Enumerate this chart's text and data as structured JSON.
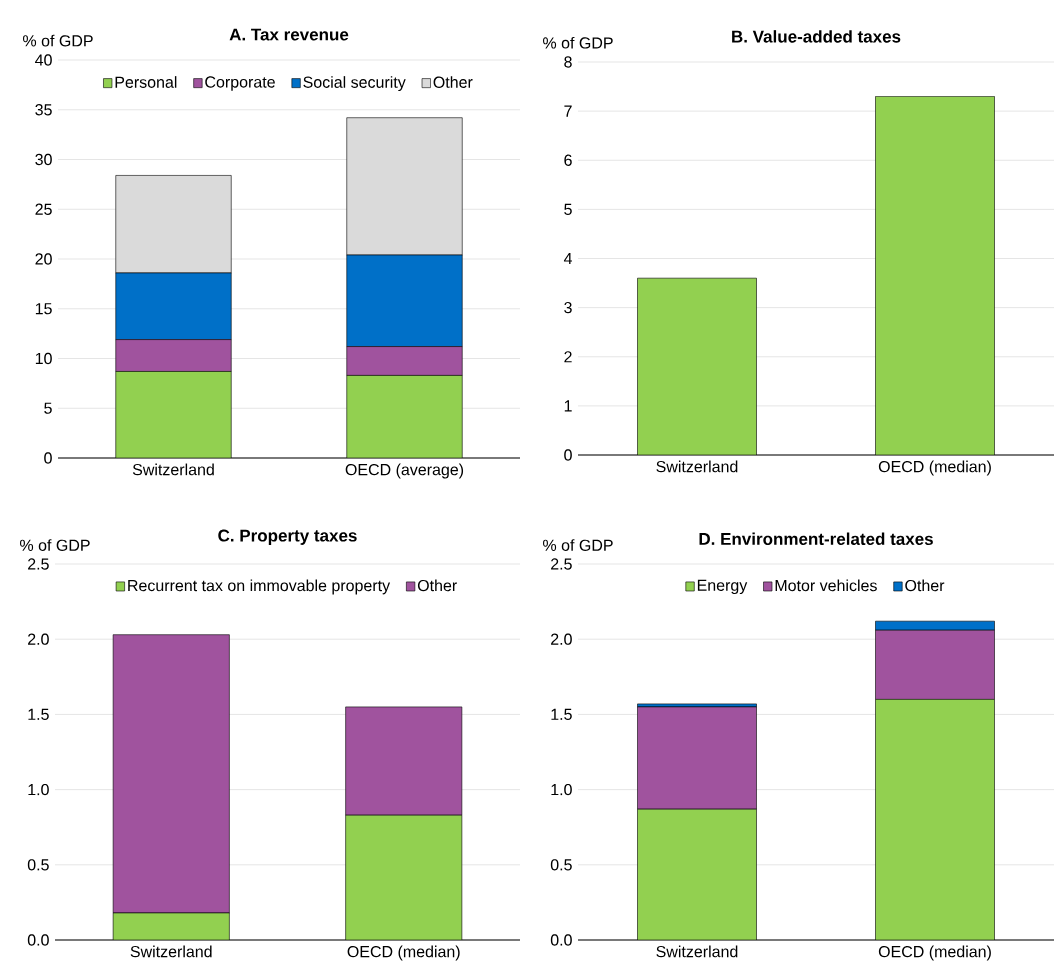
{
  "chart_data": [
    {
      "type": "bar",
      "title": "A. Tax revenue",
      "ylabel": "% of GDP",
      "categories": [
        "Switzerland",
        "OECD (average)"
      ],
      "stacked": true,
      "legend": "top",
      "grid": "y",
      "ylim": [
        0,
        40
      ],
      "yticks": [
        0,
        5,
        10,
        15,
        20,
        25,
        30,
        35,
        40
      ],
      "series": [
        {
          "name": "Personal",
          "color": "#92d050",
          "values": [
            8.7,
            8.3
          ]
        },
        {
          "name": "Corporate",
          "color": "#a0539e",
          "values": [
            3.2,
            2.9
          ]
        },
        {
          "name": "Social security",
          "color": "#0070c8",
          "values": [
            6.7,
            9.2
          ]
        },
        {
          "name": "Other",
          "color": "#dadada",
          "values": [
            9.8,
            13.8
          ]
        }
      ]
    },
    {
      "type": "bar",
      "title": "B. Value-added taxes",
      "ylabel": "% of GDP",
      "categories": [
        "Switzerland",
        "OECD (median)"
      ],
      "grid": "y",
      "ylim": [
        0,
        8
      ],
      "yticks": [
        0,
        1,
        2,
        3,
        4,
        5,
        6,
        7,
        8
      ],
      "color": "#92d050",
      "values": [
        3.6,
        7.3
      ]
    },
    {
      "type": "bar",
      "title": "C. Property taxes",
      "ylabel": "% of GDP",
      "categories": [
        "Switzerland",
        "OECD (median)"
      ],
      "stacked": true,
      "legend": "top",
      "grid": "y",
      "ylim": [
        0,
        2.5
      ],
      "yticks": [
        {
          "value": 0,
          "label": "0.0"
        },
        {
          "value": 0.5,
          "label": "0.5"
        },
        {
          "value": 1,
          "label": "1.0"
        },
        {
          "value": 1.5,
          "label": "1.5"
        },
        {
          "value": 2,
          "label": "2.0"
        },
        {
          "value": 2.5,
          "label": "2.5"
        }
      ],
      "series": [
        {
          "name": "Recurrent tax on immovable property",
          "color": "#92d050",
          "values": [
            0.18,
            0.83
          ]
        },
        {
          "name": "Other",
          "color": "#a0539e",
          "values": [
            1.85,
            0.72
          ]
        }
      ]
    },
    {
      "type": "bar",
      "title": "D. Environment-related taxes",
      "ylabel": "% of GDP",
      "categories": [
        "Switzerland",
        "OECD (median)"
      ],
      "stacked": true,
      "legend": "top",
      "grid": "y",
      "ylim": [
        0,
        2.5
      ],
      "yticks": [
        {
          "value": 0,
          "label": "0.0"
        },
        {
          "value": 0.5,
          "label": "0.5"
        },
        {
          "value": 1,
          "label": "1.0"
        },
        {
          "value": 1.5,
          "label": "1.5"
        },
        {
          "value": 2,
          "label": "2.0"
        },
        {
          "value": 2.5,
          "label": "2.5"
        }
      ],
      "series": [
        {
          "name": "Energy",
          "color": "#92d050",
          "values": [
            0.87,
            1.6
          ]
        },
        {
          "name": "Motor vehicles",
          "color": "#a0539e",
          "values": [
            0.68,
            0.46
          ]
        },
        {
          "name": "Other",
          "color": "#0070c8",
          "values": [
            0.02,
            0.06
          ]
        }
      ]
    }
  ]
}
